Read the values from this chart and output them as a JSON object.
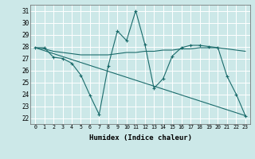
{
  "xlabel": "Humidex (Indice chaleur)",
  "ylabel": "",
  "xlim": [
    -0.5,
    23.5
  ],
  "ylim": [
    21.5,
    31.5
  ],
  "xticks": [
    0,
    1,
    2,
    3,
    4,
    5,
    6,
    7,
    8,
    9,
    10,
    11,
    12,
    13,
    14,
    15,
    16,
    17,
    18,
    19,
    20,
    21,
    22,
    23
  ],
  "yticks": [
    22,
    23,
    24,
    25,
    26,
    27,
    28,
    29,
    30,
    31
  ],
  "bg_color": "#cce8e8",
  "grid_color": "#aad4d4",
  "line_color": "#1a6b6b",
  "line1": {
    "x": [
      0,
      1,
      2,
      3,
      4,
      5,
      6,
      7,
      8,
      9,
      10,
      11,
      12,
      13,
      14,
      15,
      16,
      17,
      18,
      19,
      20,
      21,
      22,
      23
    ],
    "y": [
      27.9,
      27.9,
      27.1,
      27.0,
      26.6,
      25.6,
      23.9,
      22.3,
      26.4,
      29.3,
      28.5,
      31.0,
      28.2,
      24.5,
      25.3,
      27.2,
      27.9,
      28.1,
      28.1,
      28.0,
      27.9,
      25.5,
      24.0,
      22.2
    ]
  },
  "line2": {
    "x": [
      0,
      1,
      2,
      3,
      4,
      5,
      6,
      7,
      8,
      9,
      10,
      11,
      12,
      13,
      14,
      15,
      16,
      17,
      18,
      19,
      20,
      21,
      22,
      23
    ],
    "y": [
      27.9,
      27.8,
      27.6,
      27.5,
      27.4,
      27.3,
      27.3,
      27.3,
      27.3,
      27.4,
      27.5,
      27.5,
      27.6,
      27.6,
      27.7,
      27.7,
      27.8,
      27.8,
      27.9,
      27.9,
      27.9,
      27.8,
      27.7,
      27.6
    ]
  },
  "line3": {
    "x": [
      0,
      23
    ],
    "y": [
      27.9,
      22.2
    ]
  }
}
